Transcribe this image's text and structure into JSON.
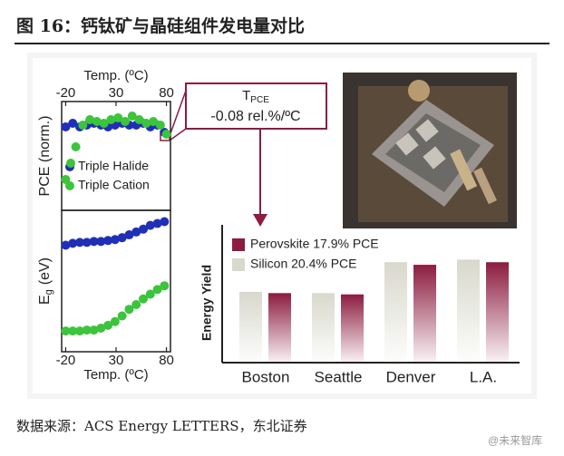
{
  "figure_title": "图 16：钙钛矿与晶硅组件发电量对比",
  "source": "数据来源：ACS Energy LETTERS，东北证券",
  "watermark": "@未来智库",
  "annotation": {
    "symbol": "T",
    "subscript": "PCE",
    "text": "-0.08 rel.%/ºC"
  },
  "chart_data": [
    {
      "type": "scatter",
      "xlabel": "Temp. (ºC)",
      "ylabel": "PCE (norm.)",
      "xaxis": "top",
      "xlim": [
        -24,
        84
      ],
      "xticks": [
        -20,
        30,
        80
      ],
      "ylim": [
        0.5,
        1.1
      ],
      "legend": "lower left",
      "series": [
        {
          "name": "Triple Halide",
          "color": "#1f2fb8",
          "x": [
            -20,
            -13,
            -6,
            1,
            8,
            15,
            22,
            29,
            36,
            43,
            50,
            57,
            64,
            71,
            78
          ],
          "values": [
            0.96,
            0.98,
            0.96,
            0.97,
            0.98,
            0.97,
            0.96,
            0.97,
            0.98,
            0.97,
            0.97,
            0.98,
            0.96,
            0.97,
            0.93
          ]
        },
        {
          "name": "Triple Cation",
          "color": "#3cc43c",
          "x": [
            -20,
            -15,
            -10,
            -3,
            4,
            11,
            18,
            25,
            32,
            39,
            46,
            53,
            60,
            67,
            74,
            80
          ],
          "values": [
            0.67,
            0.76,
            0.85,
            0.97,
            1.0,
            0.99,
            0.98,
            1.0,
            1.01,
            0.99,
            1.02,
            1.0,
            0.98,
            0.99,
            0.97,
            0.92
          ]
        }
      ]
    },
    {
      "type": "scatter",
      "xlabel": "Temp. (ºC)",
      "ylabel": {
        "symbol": "E",
        "subscript": "g",
        "unit": "(eV)"
      },
      "xaxis": "bottom",
      "xlim": [
        -24,
        84
      ],
      "xticks": [
        -20,
        30,
        80
      ],
      "ylim": [
        1.55,
        1.7
      ],
      "series": [
        {
          "name": "Triple Halide",
          "color": "#1f2fb8",
          "x": [
            -20,
            -13,
            -6,
            1,
            8,
            15,
            22,
            29,
            36,
            43,
            50,
            57,
            64,
            71,
            78
          ],
          "values": [
            1.663,
            1.665,
            1.666,
            1.666,
            1.667,
            1.667,
            1.668,
            1.669,
            1.671,
            1.674,
            1.677,
            1.68,
            1.684,
            1.686,
            1.688
          ]
        },
        {
          "name": "Triple Cation",
          "color": "#3cc43c",
          "x": [
            -20,
            -13,
            -6,
            1,
            8,
            15,
            22,
            29,
            36,
            43,
            50,
            57,
            64,
            71,
            78
          ],
          "values": [
            1.572,
            1.572,
            1.572,
            1.573,
            1.573,
            1.575,
            1.578,
            1.582,
            1.588,
            1.595,
            1.6,
            1.606,
            1.611,
            1.616,
            1.62
          ]
        }
      ]
    },
    {
      "type": "bar",
      "ylabel": "Energy Yield",
      "categories": [
        "Boston",
        "Seattle",
        "Denver",
        "L.A."
      ],
      "ylim": [
        0,
        1
      ],
      "legend": "upper left",
      "series": [
        {
          "name": "Perovskite 17.9% PCE",
          "color": "#8c1c40",
          "values": [
            0.54,
            0.53,
            0.76,
            0.78
          ]
        },
        {
          "name": "Silicon 20.4% PCE",
          "color": "#d8d8cc",
          "values": [
            0.55,
            0.54,
            0.78,
            0.8
          ]
        }
      ]
    }
  ]
}
